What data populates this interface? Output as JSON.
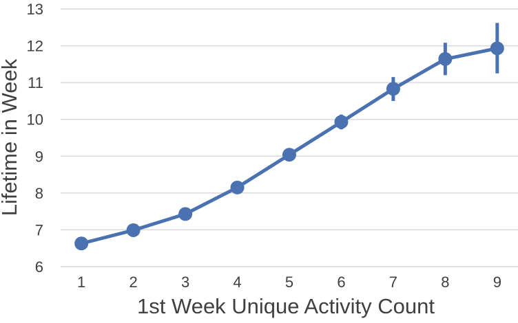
{
  "chart_data": {
    "type": "line",
    "title": "",
    "xlabel": "1st Week Unique Activity Count",
    "ylabel": "Lifetime in Week",
    "x": [
      1,
      2,
      3,
      4,
      5,
      6,
      7,
      8,
      9
    ],
    "xlim": [
      0.6,
      9.4
    ],
    "ylim": [
      6,
      13
    ],
    "yticks": [
      6,
      7,
      8,
      9,
      10,
      11,
      12,
      13
    ],
    "grid": true,
    "legend": "none",
    "series": [
      {
        "color": "#4a72b0",
        "values": [
          6.63,
          6.99,
          7.43,
          8.15,
          9.04,
          9.93,
          10.83,
          11.64,
          11.93
        ],
        "error_low": [
          6.6,
          6.96,
          7.39,
          8.1,
          8.99,
          9.73,
          10.5,
          11.2,
          11.25
        ],
        "error_high": [
          6.66,
          7.02,
          7.47,
          8.2,
          9.09,
          10.13,
          11.15,
          12.08,
          12.62
        ]
      }
    ]
  }
}
